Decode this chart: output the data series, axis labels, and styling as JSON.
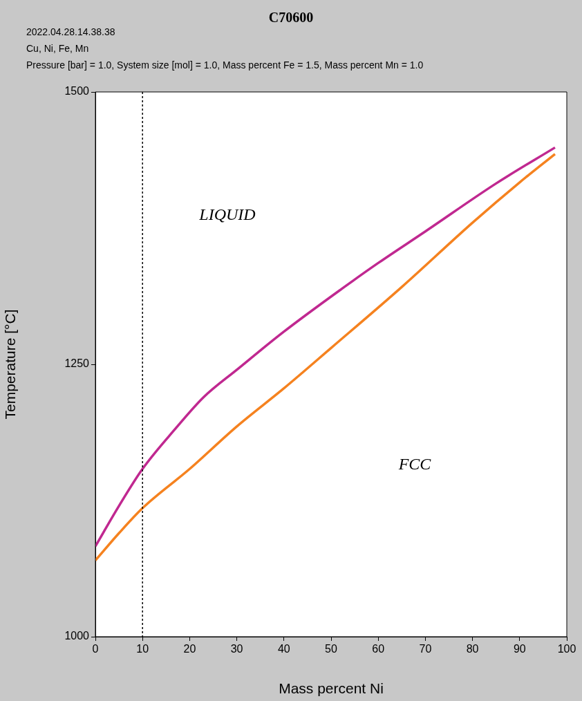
{
  "chart_data": {
    "type": "line",
    "title": "C70600",
    "subtitle": "2022.04.28.14.38.38",
    "annotations": [
      "Cu, Ni, Fe, Mn",
      "Pressure [bar] = 1.0, System size [mol] = 1.0, Mass percent Fe = 1.5, Mass percent Mn = 1.0",
      "LIQUID",
      "FCC"
    ],
    "xlabel": "Mass percent Ni",
    "ylabel": "Temperature [°C]",
    "series": [
      {
        "color": "#c02890",
        "x": [
          0,
          5,
          10,
          17,
          23,
          30,
          40,
          52.5,
          60,
          70,
          85,
          97.5
        ],
        "values": [
          1083,
          1120,
          1154,
          1191,
          1220,
          1245,
          1280,
          1320,
          1343,
          1372,
          1416,
          1449
        ]
      },
      {
        "color": "#f5821f",
        "x": [
          0,
          5,
          10,
          20,
          30,
          40,
          50,
          65,
          80,
          90,
          97.5
        ],
        "values": [
          1070,
          1095,
          1118,
          1154,
          1193,
          1228,
          1265,
          1321,
          1380,
          1417,
          1443
        ]
      }
    ],
    "xlim": [
      0,
      100
    ],
    "xticks": [
      0,
      10,
      20,
      30,
      40,
      50,
      60,
      70,
      80,
      90,
      100
    ],
    "ylim": [
      1000,
      1500
    ],
    "yticks": [
      1000,
      1250,
      1500
    ],
    "ref_lines": [
      {
        "axis": "x",
        "value": 10,
        "color": "#000000",
        "line_style": "dotted"
      }
    ],
    "grid": false,
    "legend": false,
    "marker": "none",
    "line_style": "solid"
  }
}
